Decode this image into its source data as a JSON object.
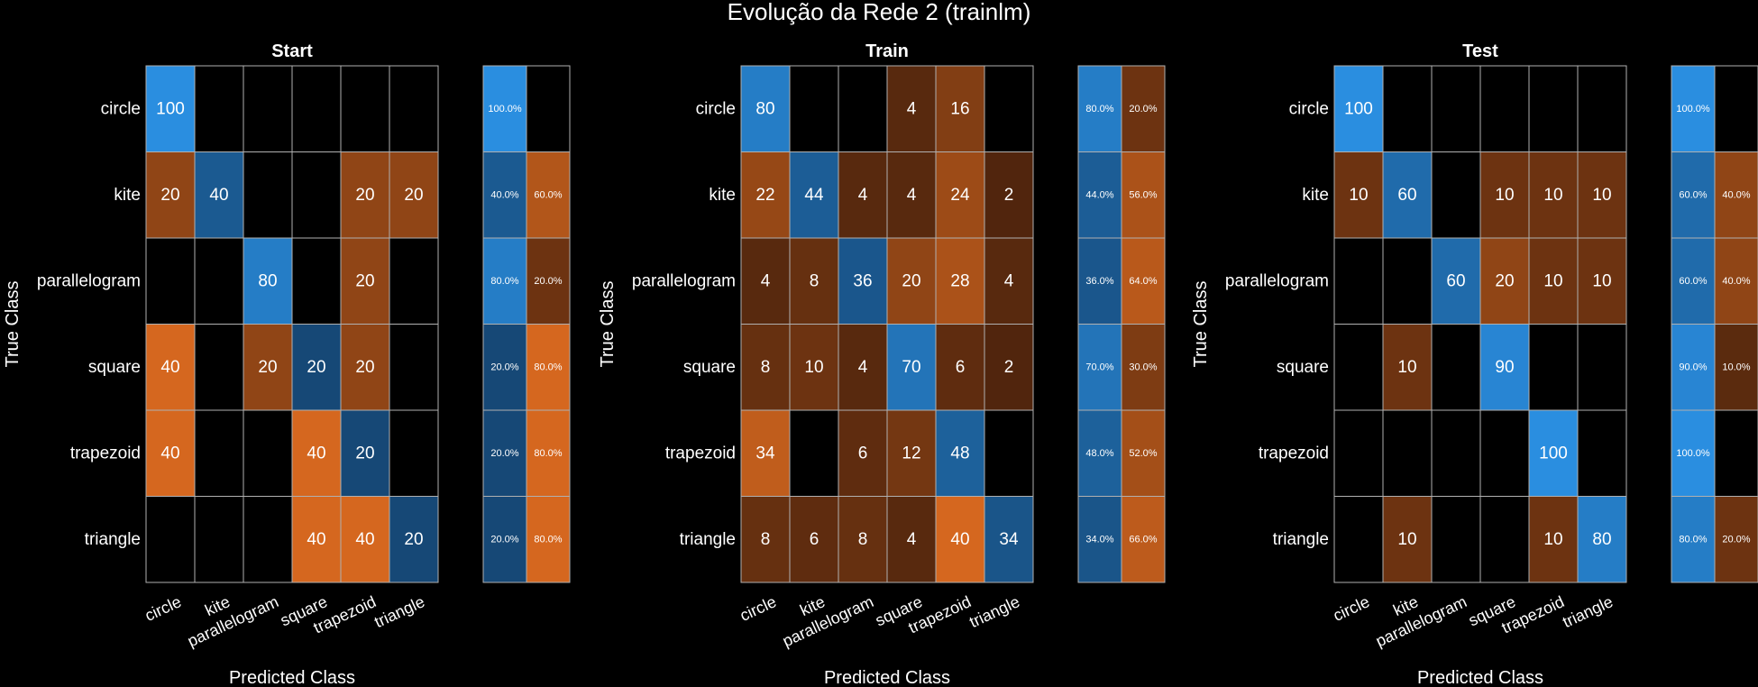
{
  "title": "Evolução da Rede 2 (trainlm)",
  "chart_data": [
    {
      "type": "heatmap",
      "title": "Start",
      "xlabel": "Predicted Class",
      "ylabel": "True Class",
      "row_labels": [
        "circle",
        "kite",
        "parallelogram",
        "square",
        "trapezoid",
        "triangle"
      ],
      "col_labels": [
        "circle",
        "kite",
        "parallelogram",
        "square",
        "trapezoid",
        "triangle"
      ],
      "values": [
        [
          100,
          null,
          null,
          null,
          null,
          null
        ],
        [
          20,
          40,
          null,
          null,
          20,
          20
        ],
        [
          null,
          null,
          80,
          null,
          20,
          null
        ],
        [
          40,
          null,
          20,
          20,
          20,
          null
        ],
        [
          40,
          null,
          null,
          40,
          20,
          null
        ],
        [
          null,
          null,
          null,
          40,
          40,
          20
        ]
      ],
      "row_summary": [
        [
          "100.0%",
          ""
        ],
        [
          "40.0%",
          "60.0%"
        ],
        [
          "80.0%",
          "20.0%"
        ],
        [
          "20.0%",
          "80.0%"
        ],
        [
          "20.0%",
          "80.0%"
        ],
        [
          "20.0%",
          "80.0%"
        ]
      ]
    },
    {
      "type": "heatmap",
      "title": "Train",
      "xlabel": "Predicted Class",
      "ylabel": "True Class",
      "row_labels": [
        "circle",
        "kite",
        "parallelogram",
        "square",
        "trapezoid",
        "triangle"
      ],
      "col_labels": [
        "circle",
        "kite",
        "parallelogram",
        "square",
        "trapezoid",
        "triangle"
      ],
      "values": [
        [
          80,
          null,
          null,
          4,
          16,
          null
        ],
        [
          22,
          44,
          4,
          4,
          24,
          2
        ],
        [
          4,
          8,
          36,
          20,
          28,
          4
        ],
        [
          8,
          10,
          4,
          70,
          6,
          2
        ],
        [
          34,
          null,
          6,
          12,
          48,
          null
        ],
        [
          8,
          6,
          8,
          4,
          40,
          34
        ]
      ],
      "row_summary": [
        [
          "80.0%",
          "20.0%"
        ],
        [
          "44.0%",
          "56.0%"
        ],
        [
          "36.0%",
          "64.0%"
        ],
        [
          "70.0%",
          "30.0%"
        ],
        [
          "48.0%",
          "52.0%"
        ],
        [
          "34.0%",
          "66.0%"
        ]
      ]
    },
    {
      "type": "heatmap",
      "title": "Test",
      "xlabel": "Predicted Class",
      "ylabel": "True Class",
      "row_labels": [
        "circle",
        "kite",
        "parallelogram",
        "square",
        "trapezoid",
        "triangle"
      ],
      "col_labels": [
        "circle",
        "kite",
        "parallelogram",
        "square",
        "trapezoid",
        "triangle"
      ],
      "values": [
        [
          100,
          null,
          null,
          null,
          null,
          null
        ],
        [
          10,
          60,
          null,
          10,
          10,
          10
        ],
        [
          null,
          null,
          60,
          20,
          10,
          10
        ],
        [
          null,
          10,
          null,
          90,
          null,
          null
        ],
        [
          null,
          null,
          null,
          null,
          100,
          null
        ],
        [
          null,
          10,
          null,
          null,
          10,
          80
        ]
      ],
      "row_summary": [
        [
          "100.0%",
          ""
        ],
        [
          "60.0%",
          "40.0%"
        ],
        [
          "60.0%",
          "40.0%"
        ],
        [
          "90.0%",
          "10.0%"
        ],
        [
          "100.0%",
          ""
        ],
        [
          "80.0%",
          "20.0%"
        ]
      ]
    }
  ],
  "colors": {
    "correct_high": "#2a8ee0",
    "correct_low": "#11375c",
    "wrong_high": "#d5671f",
    "wrong_low": "#4a220c",
    "grid": "#b0b0b0",
    "background": "#000000"
  }
}
